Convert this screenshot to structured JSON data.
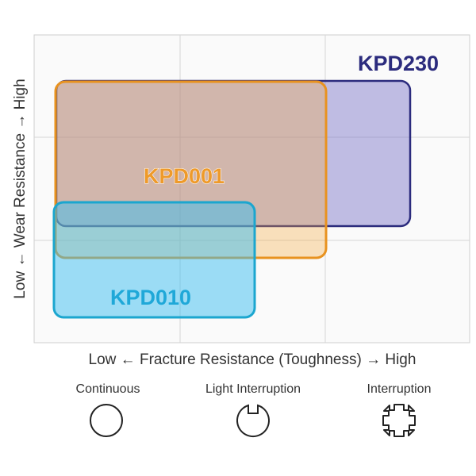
{
  "regions": [
    {
      "label": "KPD230"
    },
    {
      "label": "KPD001"
    },
    {
      "label": "KPD010"
    }
  ],
  "axes": {
    "x": "Low ← Fracture Resistance (Toughness) → High",
    "y": "Low ← Wear Resistance → High"
  },
  "conditions": [
    {
      "label": "Continuous"
    },
    {
      "label": "Light Interruption"
    },
    {
      "label": "Interruption"
    }
  ]
}
